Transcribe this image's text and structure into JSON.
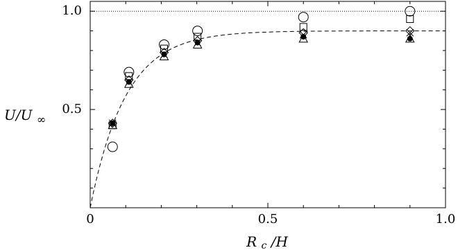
{
  "chart_data": {
    "type": "scatter",
    "xlabel": "R_c/H",
    "ylabel": "U/U_∞",
    "xlim": [
      0,
      1.0
    ],
    "ylim": [
      0,
      1.05
    ],
    "xticks": [
      0,
      0.5,
      1.0
    ],
    "xtick_labels": [
      "0",
      "0.5",
      "1.0"
    ],
    "yticks": [
      0.5,
      1.0
    ],
    "ytick_labels": [
      "0.5",
      "1.0"
    ],
    "grid": false,
    "series": [
      {
        "marker": "circle",
        "x": [
          0.063,
          0.109,
          0.208,
          0.302,
          0.6,
          0.9
        ],
        "y": [
          0.31,
          0.69,
          0.83,
          0.9,
          0.97,
          1.0
        ]
      },
      {
        "marker": "square",
        "x": [
          0.063,
          0.109,
          0.208,
          0.302,
          0.6,
          0.9
        ],
        "y": [
          0.42,
          0.67,
          0.81,
          0.87,
          0.92,
          0.96
        ]
      },
      {
        "marker": "diamond",
        "x": [
          0.063,
          0.109,
          0.208,
          0.302,
          0.6,
          0.9
        ],
        "y": [
          0.43,
          0.65,
          0.79,
          0.85,
          0.89,
          0.9
        ]
      },
      {
        "marker": "cross",
        "x": [
          0.063,
          0.109,
          0.208,
          0.302,
          0.6,
          0.9
        ],
        "y": [
          0.43,
          0.64,
          0.78,
          0.84,
          0.88,
          0.89
        ]
      },
      {
        "marker": "triangle",
        "x": [
          0.063,
          0.109,
          0.208,
          0.302,
          0.6,
          0.9
        ],
        "y": [
          0.42,
          0.63,
          0.77,
          0.83,
          0.86,
          0.86
        ]
      },
      {
        "marker": "filled-circle",
        "x": [
          0.063,
          0.109,
          0.208,
          0.302,
          0.6,
          0.9
        ],
        "y": [
          0.43,
          0.64,
          0.78,
          0.84,
          0.87,
          0.86
        ]
      }
    ],
    "reference_lines": [
      {
        "style": "dotted",
        "y": 1.0
      },
      {
        "style": "dashed",
        "function": "0.9*(1-exp(-x/0.1))",
        "x_range": [
          0,
          1.0
        ]
      }
    ]
  }
}
